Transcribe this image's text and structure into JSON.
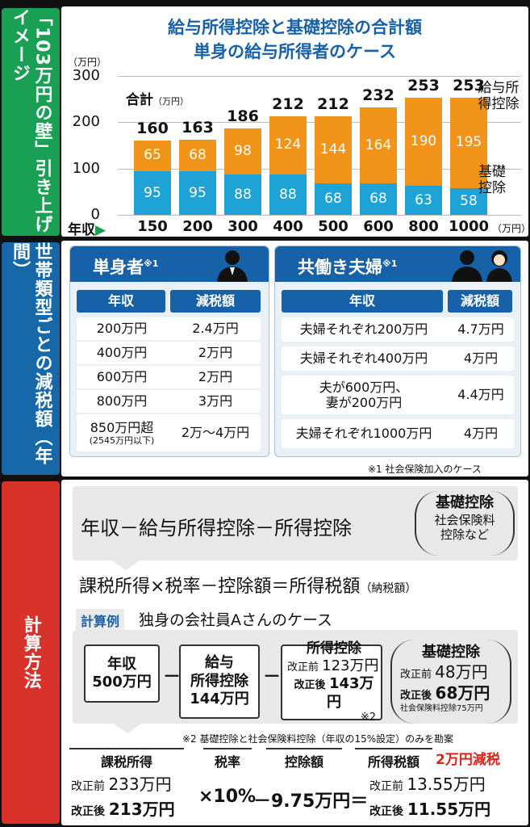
{
  "tabs": {
    "chart_tab": "「103万円の壁」引き上げイメージ",
    "table_tab": "世帯類型ごとの減税額（年間）",
    "calc_tab": "計算方法"
  },
  "chart_data": {
    "type": "bar",
    "title": "給与所得控除と基礎控除の合計額",
    "subtitle": "単身の給与所得者のケース",
    "ylabel_unit": "（万円）",
    "ylim": [
      0,
      300
    ],
    "yticks": [
      "0",
      "100",
      "200",
      "300"
    ],
    "xlabel": "年収",
    "xunit": "（万円）",
    "categories": [
      "150",
      "200",
      "300",
      "400",
      "500",
      "600",
      "800",
      "1000"
    ],
    "totals_label": "合計",
    "totals_unit": "（万円）",
    "totals": [
      160,
      163,
      186,
      212,
      212,
      232,
      253,
      253
    ],
    "series": [
      {
        "name": "基礎控除",
        "color": "#1fa2d6",
        "values": [
          95,
          95,
          88,
          88,
          68,
          68,
          63,
          58
        ]
      },
      {
        "name": "給与所得控除",
        "color": "#f29419",
        "values": [
          65,
          68,
          98,
          124,
          144,
          164,
          190,
          195
        ]
      }
    ],
    "legend": {
      "top_label": "給与所得控除",
      "bottom_label": "基礎控除",
      "placement": "right"
    }
  },
  "tables": {
    "single": {
      "title": "単身者",
      "mark": "※1",
      "col1": "年収",
      "col2": "減税額",
      "rows": [
        {
          "income": "200万円",
          "cut": "2.4万円"
        },
        {
          "income": "400万円",
          "cut": "2万円"
        },
        {
          "income": "600万円",
          "cut": "2万円"
        },
        {
          "income": "800万円",
          "cut": "3万円"
        },
        {
          "income": "850万円超",
          "income_sub": "(2545万円以下)",
          "cut": "2万〜4万円"
        }
      ]
    },
    "couple": {
      "title": "共働き夫婦",
      "mark": "※1",
      "col1": "年収",
      "col2": "減税額",
      "rows": [
        {
          "income": "夫婦それぞれ200万円",
          "cut": "4.7万円"
        },
        {
          "income": "夫婦それぞれ400万円",
          "cut": "4万円"
        },
        {
          "income": "夫が600万円、",
          "income2": "妻が200万円",
          "cut": "4.4万円"
        },
        {
          "income": "夫婦それぞれ1000万円",
          "cut": "4万円"
        }
      ]
    },
    "footnote": "※1 社会保険加入のケース"
  },
  "calc": {
    "formula1": "年収－給与所得控除－所得控除",
    "paren_title": "基礎控除",
    "paren_l1": "社会保険料",
    "paren_l2": "控除など",
    "formula2": "課税所得×税率－控除額＝所得税額",
    "formula2_tail": "（納税額）",
    "example_tag": "計算例",
    "example_text": "独身の会社員Aさんのケース",
    "box_income_l1": "年収",
    "box_income_l2": "500万円",
    "minus": "－",
    "box_kyuyo_l1": "給与",
    "box_kyuyo_l2": "所得控除",
    "box_kyuyo_l3": "144万円",
    "box_shotoku_title": "所得控除",
    "box_shotoku_before": "改正前",
    "box_shotoku_before_val": "123万円",
    "box_shotoku_after": "改正後",
    "box_shotoku_after_val": "143万円",
    "box_shotoku_note": "※2",
    "kiso_title": "基礎控除",
    "kiso_before": "改正前",
    "kiso_before_val": "48万円",
    "kiso_after": "改正後",
    "kiso_after_val": "68万円",
    "kiso_note": "社会保険料控除75万円",
    "footnote2": "※2 基礎控除と社会保険料控除（年収の15%設定）のみを勘案",
    "h_kazei": "課税所得",
    "h_zeiritsu": "税率",
    "h_kojo": "控除額",
    "h_shotokuzei": "所得税額",
    "genzei": "2万円減税",
    "kazei_before_lbl": "改正前",
    "kazei_before_val": "233万円",
    "kazei_after_lbl": "改正後",
    "kazei_after_val": "213万円",
    "rate": "×10%",
    "kojo": "－9.75万円＝",
    "tax_before_lbl": "改正前",
    "tax_before_val": "13.55万円",
    "tax_after_lbl": "改正後",
    "tax_after_val": "11.55万円"
  }
}
